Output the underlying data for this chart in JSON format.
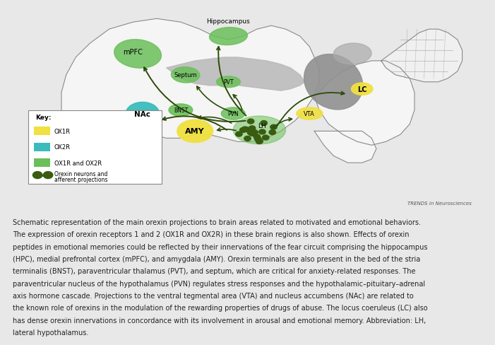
{
  "bg_color": "#e8e8e8",
  "panel_bg": "#ffffff",
  "colors": {
    "ox1r": "#f0e040",
    "ox2r": "#3bbcbc",
    "ox1r_ox2r": "#6bbf5a",
    "orexin_neurons": "#3a5c10",
    "brain_outline": "#888888",
    "arrow": "#2d4a0a",
    "gray_region": "#999999",
    "gray_light": "#cccccc",
    "gray_med": "#aaaaaa"
  },
  "caption_lines": [
    "Schematic representation of the main orexin projections to brain areas related to motivated and emotional behaviors.",
    "The expression of orexin receptors 1 and 2 (OX1R and OX2R) in these brain regions is also shown. Effects of orexin",
    "peptides in emotional memories could be reflected by their innervations of the fear circuit comprising the hippocampus",
    "(HPC), medial prefrontal cortex (mPFC), and amygdala (AMY). Orexin terminals are also present in the bed of the stria",
    "terminalis (BNST), paraventricular thalamus (PVT), and septum, which are critical for anxiety-related responses. The",
    "paraventricular nucleus of the hypothalamus (PVN) regulates stress responses and the hypothalamic–pituitary–adrenal",
    "axis hormone cascade. Projections to the ventral tegmental area (VTA) and nucleus accumbens (NAc) are related to",
    "the known role of orexins in the modulation of the rewarding properties of drugs of abuse. The locus coeruleus (LC) also",
    "has dense orexin innervations in concordance with its involvement in arousal and emotional memory. Abbreviation: LH,",
    "lateral hypothalamus."
  ],
  "trends_label": "TRENDS in Neurosciences"
}
